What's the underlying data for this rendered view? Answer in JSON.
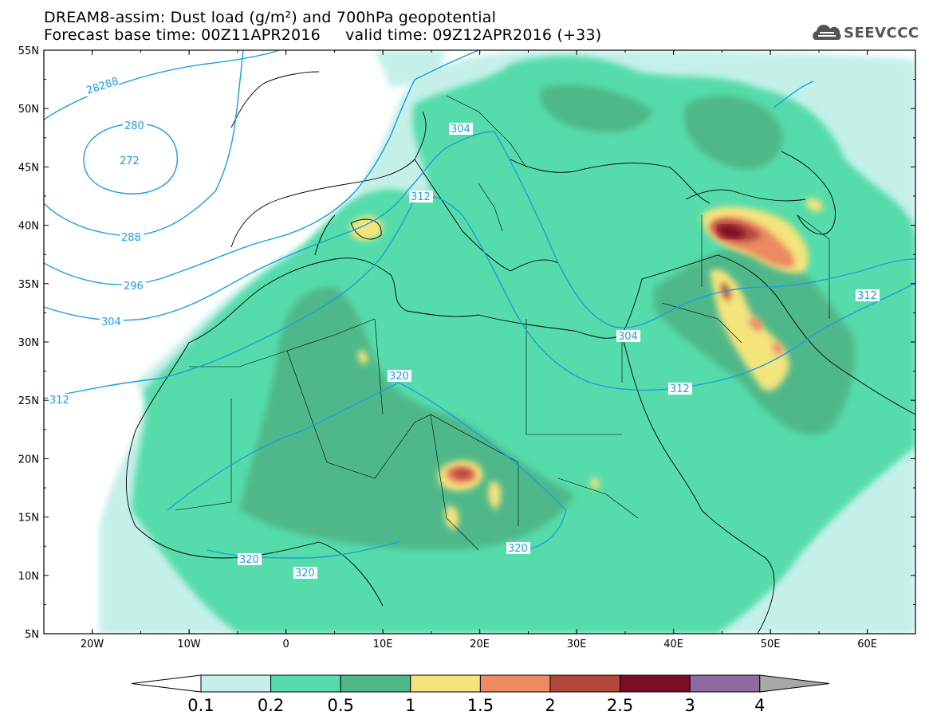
{
  "header": {
    "line1": "DREAM8-assim: Dust load (g/m²) and 700hPa geopotential",
    "line2": "Forecast base time: 00Z11APR2016     valid time: 09Z12APR2016 (+33)",
    "logo": "SEEVCCC"
  },
  "axes": {
    "lat_labels": [
      "55N",
      "50N",
      "45N",
      "40N",
      "35N",
      "30N",
      "25N",
      "20N",
      "15N",
      "10N",
      "5N"
    ],
    "lon_labels": [
      "20W",
      "10W",
      "0",
      "10E",
      "20E",
      "30E",
      "40E",
      "50E",
      "60E"
    ]
  },
  "contours": [
    {
      "label": "28288"
    },
    {
      "label": "280"
    },
    {
      "label": "272"
    },
    {
      "label": "288"
    },
    {
      "label": "296"
    },
    {
      "label": "304"
    },
    {
      "label": "312"
    },
    {
      "label": "320"
    }
  ],
  "colorbar": {
    "labels": [
      "0.1",
      "0.2",
      "0.5",
      "1",
      "1.5",
      "2",
      "2.5",
      "3",
      "4"
    ],
    "colors": [
      "#c4f0e8",
      "#55dcaa",
      "#4fb88a",
      "#f4e47c",
      "#ec8a62",
      "#b3473a",
      "#7c0d28",
      "#8d6aa0"
    ],
    "over_color": "#a8a8a8",
    "under_color": "#ffffff"
  },
  "colors": {
    "contour": "#1a9fe0",
    "very_light": "#c4f0e8",
    "light": "#55dcaa",
    "medium": "#4fb88a",
    "yellow": "#f4e47c",
    "orange": "#ec8a62",
    "brown": "#b3473a",
    "dark": "#7c0d28"
  }
}
